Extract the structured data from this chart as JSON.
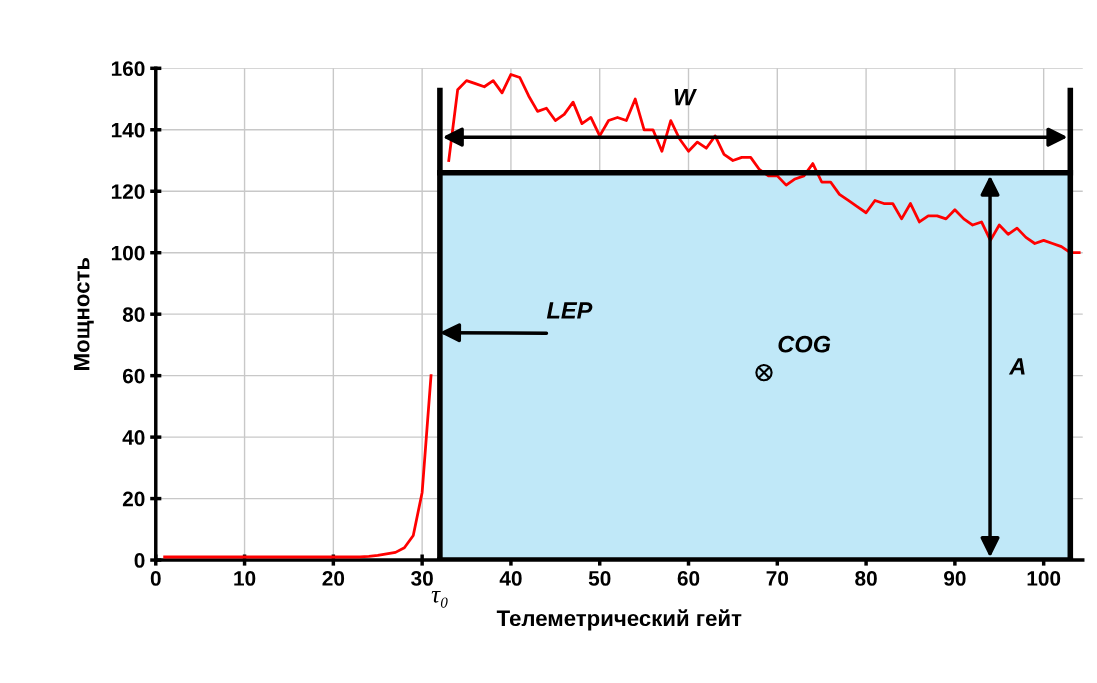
{
  "chart_data": {
    "type": "line",
    "xlabel": "Телеметрический гейт",
    "ylabel": "Мощность",
    "xlim": [
      0,
      104.4
    ],
    "ylim": [
      0,
      160
    ],
    "xticks": [
      0,
      10,
      20,
      30,
      40,
      50,
      60,
      70,
      80,
      90,
      100
    ],
    "yticks": [
      0,
      20,
      40,
      60,
      80,
      100,
      120,
      140,
      160
    ],
    "grid": true,
    "legend": false,
    "marker": "none",
    "line_style": "solid",
    "series": [
      {
        "type": "area",
        "color": "#c0e8f8",
        "x": [
          32,
          103
        ],
        "values": [
          126,
          126
        ]
      },
      {
        "color": "#ff0000",
        "x": [
          1,
          2,
          3,
          4,
          5,
          6,
          7,
          8,
          9,
          10,
          11,
          12,
          13,
          14,
          15,
          16,
          17,
          18,
          19,
          20,
          21,
          22,
          23,
          24,
          25,
          26,
          27,
          28,
          29,
          30,
          31,
          32,
          33,
          34,
          35,
          36,
          37,
          38,
          39,
          40,
          41,
          42,
          43,
          44,
          45,
          46,
          47,
          48,
          49,
          50,
          51,
          52,
          53,
          54,
          55,
          56,
          57,
          58,
          59,
          60,
          61,
          62,
          63,
          64,
          65,
          66,
          67,
          68,
          69,
          70,
          71,
          72,
          73,
          74,
          75,
          76,
          77,
          78,
          79,
          80,
          81,
          82,
          83,
          84,
          85,
          86,
          87,
          88,
          89,
          90,
          91,
          92,
          93,
          94,
          95,
          96,
          97,
          98,
          99,
          100,
          101,
          102,
          103,
          104
        ],
        "values": [
          1,
          1,
          1,
          1,
          1,
          1,
          1,
          1,
          1,
          1,
          1,
          1,
          1,
          1,
          1,
          1,
          1,
          1,
          1,
          1,
          1,
          1,
          1,
          1.2,
          1.5,
          2,
          2.5,
          4,
          8,
          22,
          60,
          null,
          130,
          153,
          156,
          155,
          154,
          156,
          152,
          158,
          157,
          151,
          146,
          147,
          143,
          145,
          149,
          142,
          144,
          138,
          143,
          144,
          143,
          150,
          140,
          140,
          133,
          143,
          137,
          133,
          136,
          134,
          138,
          132,
          130,
          131,
          131,
          127,
          125,
          125,
          122,
          124,
          125,
          129,
          123,
          123,
          119,
          117,
          115,
          113,
          117,
          116,
          116,
          111,
          116,
          110,
          112,
          112,
          111,
          114,
          111,
          109,
          110,
          104,
          109,
          106,
          108,
          105,
          103,
          104,
          103,
          102,
          100,
          100
        ]
      }
    ],
    "ref_lines": [
      {
        "axis": "x",
        "value": 32,
        "label": "τ₀",
        "color": "#000000"
      },
      {
        "axis": "x",
        "value": 103,
        "color": "#000000"
      }
    ],
    "annotations": [
      "W",
      {
        "text": "LEP",
        "x": 32,
        "y": 74
      },
      {
        "text": "COG",
        "x": 68.5,
        "y": 61
      },
      "A"
    ]
  }
}
